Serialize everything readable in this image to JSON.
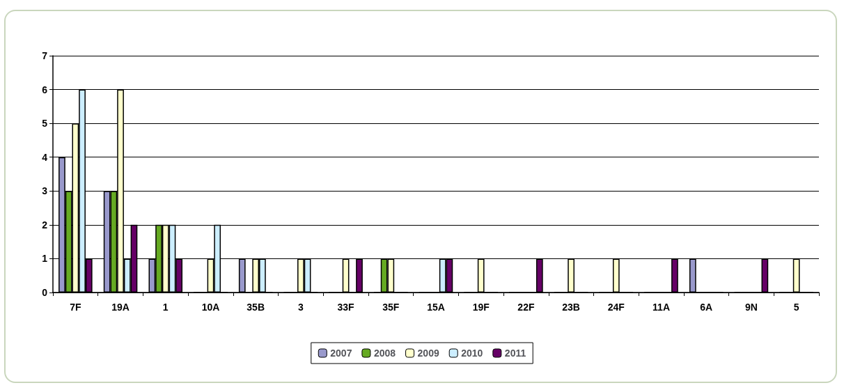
{
  "chart_data": {
    "type": "bar",
    "categories": [
      "7F",
      "19A",
      "1",
      "10A",
      "35B",
      "3",
      "33F",
      "35F",
      "15A",
      "19F",
      "22F",
      "23B",
      "24F",
      "11A",
      "6A",
      "9N",
      "5"
    ],
    "series": [
      {
        "name": "2007",
        "color": "#9999cc",
        "values": [
          4,
          3,
          1,
          0,
          1,
          0,
          0,
          0,
          0,
          0,
          0,
          0,
          0,
          0,
          1,
          0,
          0
        ]
      },
      {
        "name": "2008",
        "color": "#66aa22",
        "values": [
          3,
          3,
          2,
          0,
          0,
          0,
          0,
          1,
          0,
          0,
          0,
          0,
          0,
          0,
          0,
          0,
          0
        ]
      },
      {
        "name": "2009",
        "color": "#ffffcc",
        "values": [
          5,
          6,
          2,
          1,
          1,
          1,
          1,
          1,
          0,
          1,
          0,
          1,
          1,
          0,
          0,
          0,
          1
        ]
      },
      {
        "name": "2010",
        "color": "#cceeff",
        "values": [
          6,
          1,
          2,
          2,
          1,
          1,
          0,
          0,
          1,
          0,
          0,
          0,
          0,
          0,
          0,
          0,
          0
        ]
      },
      {
        "name": "2011",
        "color": "#660066",
        "values": [
          1,
          2,
          1,
          0,
          0,
          0,
          1,
          0,
          1,
          0,
          1,
          0,
          0,
          1,
          0,
          1,
          0
        ]
      }
    ],
    "ylim": [
      0,
      7
    ],
    "yticks": [
      0,
      1,
      2,
      3,
      4,
      5,
      6,
      7
    ],
    "grid": "y",
    "legend": "bottom"
  }
}
